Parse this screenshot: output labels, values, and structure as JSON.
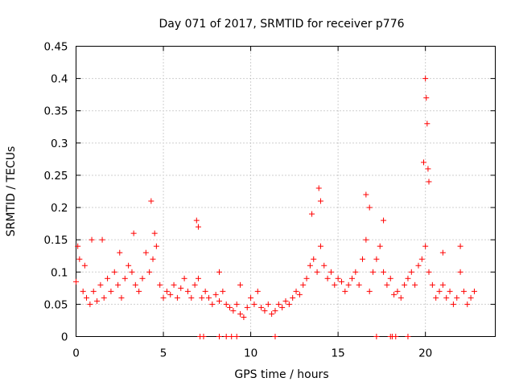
{
  "chart_data": {
    "type": "scatter",
    "title": "Day 071 of 2017, SRMTID for receiver p776",
    "xlabel": "GPS time / hours",
    "ylabel": "SRMTID / TECUs",
    "xlim": [
      0,
      24
    ],
    "ylim": [
      0,
      0.45
    ],
    "xticks": [
      0,
      5,
      10,
      15,
      20
    ],
    "xtick_labels": [
      "0",
      "5",
      "10",
      "15",
      "20"
    ],
    "yticks": [
      0,
      0.05,
      0.1,
      0.15,
      0.2,
      0.25,
      0.3,
      0.35,
      0.4,
      0.45
    ],
    "ytick_labels": [
      "0",
      "0.05",
      "0.1",
      "0.15",
      "0.2",
      "0.25",
      "0.3",
      "0.35",
      "0.4",
      "0.45"
    ],
    "grid": true,
    "marker": "+",
    "color": "#ff0000",
    "series": [
      {
        "name": "SRMTID",
        "x": [
          0.0,
          0.2,
          0.4,
          0.6,
          0.8,
          1.0,
          1.2,
          1.4,
          1.6,
          1.8,
          2.0,
          2.2,
          2.4,
          2.6,
          2.8,
          3.0,
          3.2,
          3.4,
          3.6,
          3.8,
          4.0,
          4.2,
          4.4,
          4.6,
          4.8,
          5.0,
          5.2,
          5.4,
          5.6,
          5.8,
          6.0,
          6.2,
          6.4,
          6.6,
          6.8,
          7.0,
          7.2,
          7.4,
          7.6,
          7.8,
          8.0,
          8.2,
          8.4,
          8.6,
          8.8,
          9.0,
          9.2,
          9.4,
          9.6,
          9.8,
          10.0,
          10.2,
          10.4,
          10.6,
          10.8,
          11.0,
          11.2,
          11.4,
          11.6,
          11.8,
          12.0,
          12.2,
          12.4,
          12.6,
          12.8,
          13.0,
          13.2,
          13.4,
          13.6,
          13.8,
          14.0,
          14.2,
          14.4,
          14.6,
          14.8,
          15.0,
          15.2,
          15.4,
          15.6,
          15.8,
          16.0,
          16.2,
          16.4,
          16.6,
          16.8,
          17.0,
          17.2,
          17.4,
          17.6,
          17.8,
          18.0,
          18.2,
          18.4,
          18.6,
          18.8,
          19.0,
          19.2,
          19.4,
          19.6,
          19.8,
          20.0,
          20.2,
          20.4,
          20.6,
          20.8,
          21.0,
          21.2,
          21.4,
          21.6,
          21.8,
          22.0,
          22.2,
          22.4,
          22.6,
          22.8,
          0.1,
          0.5,
          0.9,
          1.5,
          2.5,
          3.3,
          4.3,
          4.5,
          6.9,
          7.0,
          8.2,
          9.4,
          13.5,
          13.9,
          14.0,
          16.6,
          16.8,
          17.6,
          19.9,
          20.0,
          20.05,
          20.1,
          20.15,
          20.2,
          21.0,
          22.0,
          7.1,
          7.3,
          8.2,
          8.6,
          8.9,
          9.2,
          11.4,
          17.2,
          18.0,
          18.1,
          18.3,
          19.0
        ],
        "y": [
          0.085,
          0.12,
          0.07,
          0.06,
          0.05,
          0.07,
          0.055,
          0.08,
          0.06,
          0.09,
          0.07,
          0.1,
          0.08,
          0.06,
          0.09,
          0.11,
          0.1,
          0.08,
          0.07,
          0.09,
          0.13,
          0.1,
          0.12,
          0.14,
          0.08,
          0.06,
          0.07,
          0.065,
          0.08,
          0.06,
          0.075,
          0.09,
          0.07,
          0.06,
          0.08,
          0.09,
          0.06,
          0.07,
          0.06,
          0.05,
          0.065,
          0.055,
          0.07,
          0.05,
          0.045,
          0.04,
          0.05,
          0.035,
          0.03,
          0.045,
          0.06,
          0.05,
          0.07,
          0.045,
          0.04,
          0.05,
          0.035,
          0.04,
          0.05,
          0.045,
          0.055,
          0.05,
          0.06,
          0.07,
          0.065,
          0.08,
          0.09,
          0.11,
          0.12,
          0.1,
          0.14,
          0.11,
          0.09,
          0.1,
          0.08,
          0.09,
          0.085,
          0.07,
          0.08,
          0.09,
          0.1,
          0.08,
          0.12,
          0.15,
          0.07,
          0.1,
          0.12,
          0.14,
          0.1,
          0.08,
          0.09,
          0.065,
          0.07,
          0.06,
          0.08,
          0.09,
          0.1,
          0.08,
          0.11,
          0.12,
          0.14,
          0.1,
          0.08,
          0.06,
          0.07,
          0.08,
          0.06,
          0.07,
          0.05,
          0.06,
          0.1,
          0.07,
          0.05,
          0.06,
          0.07,
          0.14,
          0.11,
          0.15,
          0.15,
          0.13,
          0.16,
          0.21,
          0.16,
          0.18,
          0.17,
          0.1,
          0.08,
          0.19,
          0.23,
          0.21,
          0.22,
          0.2,
          0.18,
          0.27,
          0.4,
          0.37,
          0.33,
          0.26,
          0.24,
          0.13,
          0.14,
          0.0,
          0.0,
          0.0,
          0.0,
          0.0,
          0.0,
          0.0,
          0.0,
          0.0,
          0.0,
          0.0,
          0.0
        ]
      }
    ]
  }
}
